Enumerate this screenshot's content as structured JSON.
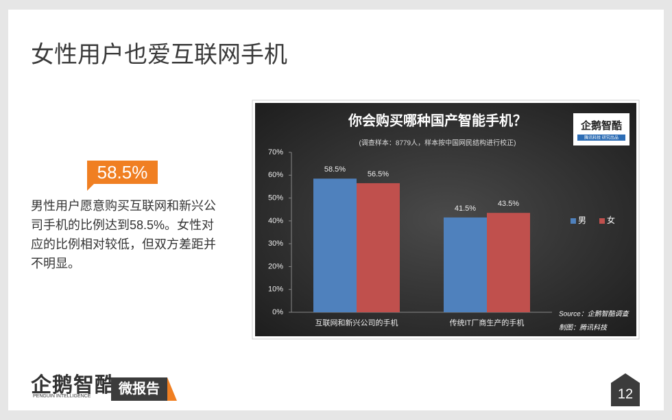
{
  "slide": {
    "title": "女性用户也爱互联网手机",
    "highlight": "58.5%",
    "paragraph": "男性用户愿意购买互联网和新兴公司手机的比例达到58.5%。女性对应的比例相对较低，但双方差距并不明显。",
    "brand": "企鹅智酷",
    "brand_sub": "PENGUIN INTELLIGENCE",
    "report": "微报告",
    "page": "12"
  },
  "chart_data": {
    "type": "bar",
    "title": "你会购买哪种国产智能手机？",
    "subtitle": "(调查样本：8779人，样本按中国网民结构进行校正)",
    "logo": "企鹅智酷",
    "logo_sub": "腾讯科技 研究出品",
    "categories": [
      "互联网和新兴公司的手机",
      "传统IT厂商生产的手机"
    ],
    "series": [
      {
        "name": "男",
        "color": "#4f81bd",
        "values": [
          58.5,
          41.5
        ],
        "value_labels": [
          "58.5%",
          "41.5%"
        ]
      },
      {
        "name": "女",
        "color": "#c0504d",
        "values": [
          56.5,
          43.5
        ],
        "value_labels": [
          "56.5%",
          "43.5%"
        ]
      }
    ],
    "ylim": [
      0,
      70
    ],
    "yticks": [
      {
        "value": 0,
        "label": "0%"
      },
      {
        "value": 10,
        "label": "10%"
      },
      {
        "value": 20,
        "label": "20%"
      },
      {
        "value": 30,
        "label": "30%"
      },
      {
        "value": 40,
        "label": "40%"
      },
      {
        "value": 50,
        "label": "50%"
      },
      {
        "value": 60,
        "label": "60%"
      },
      {
        "value": 70,
        "label": "70%"
      }
    ],
    "legend": "right",
    "grid": false,
    "source": "Source：企鹅智酷调查",
    "credit": "制图：腾讯科技"
  }
}
